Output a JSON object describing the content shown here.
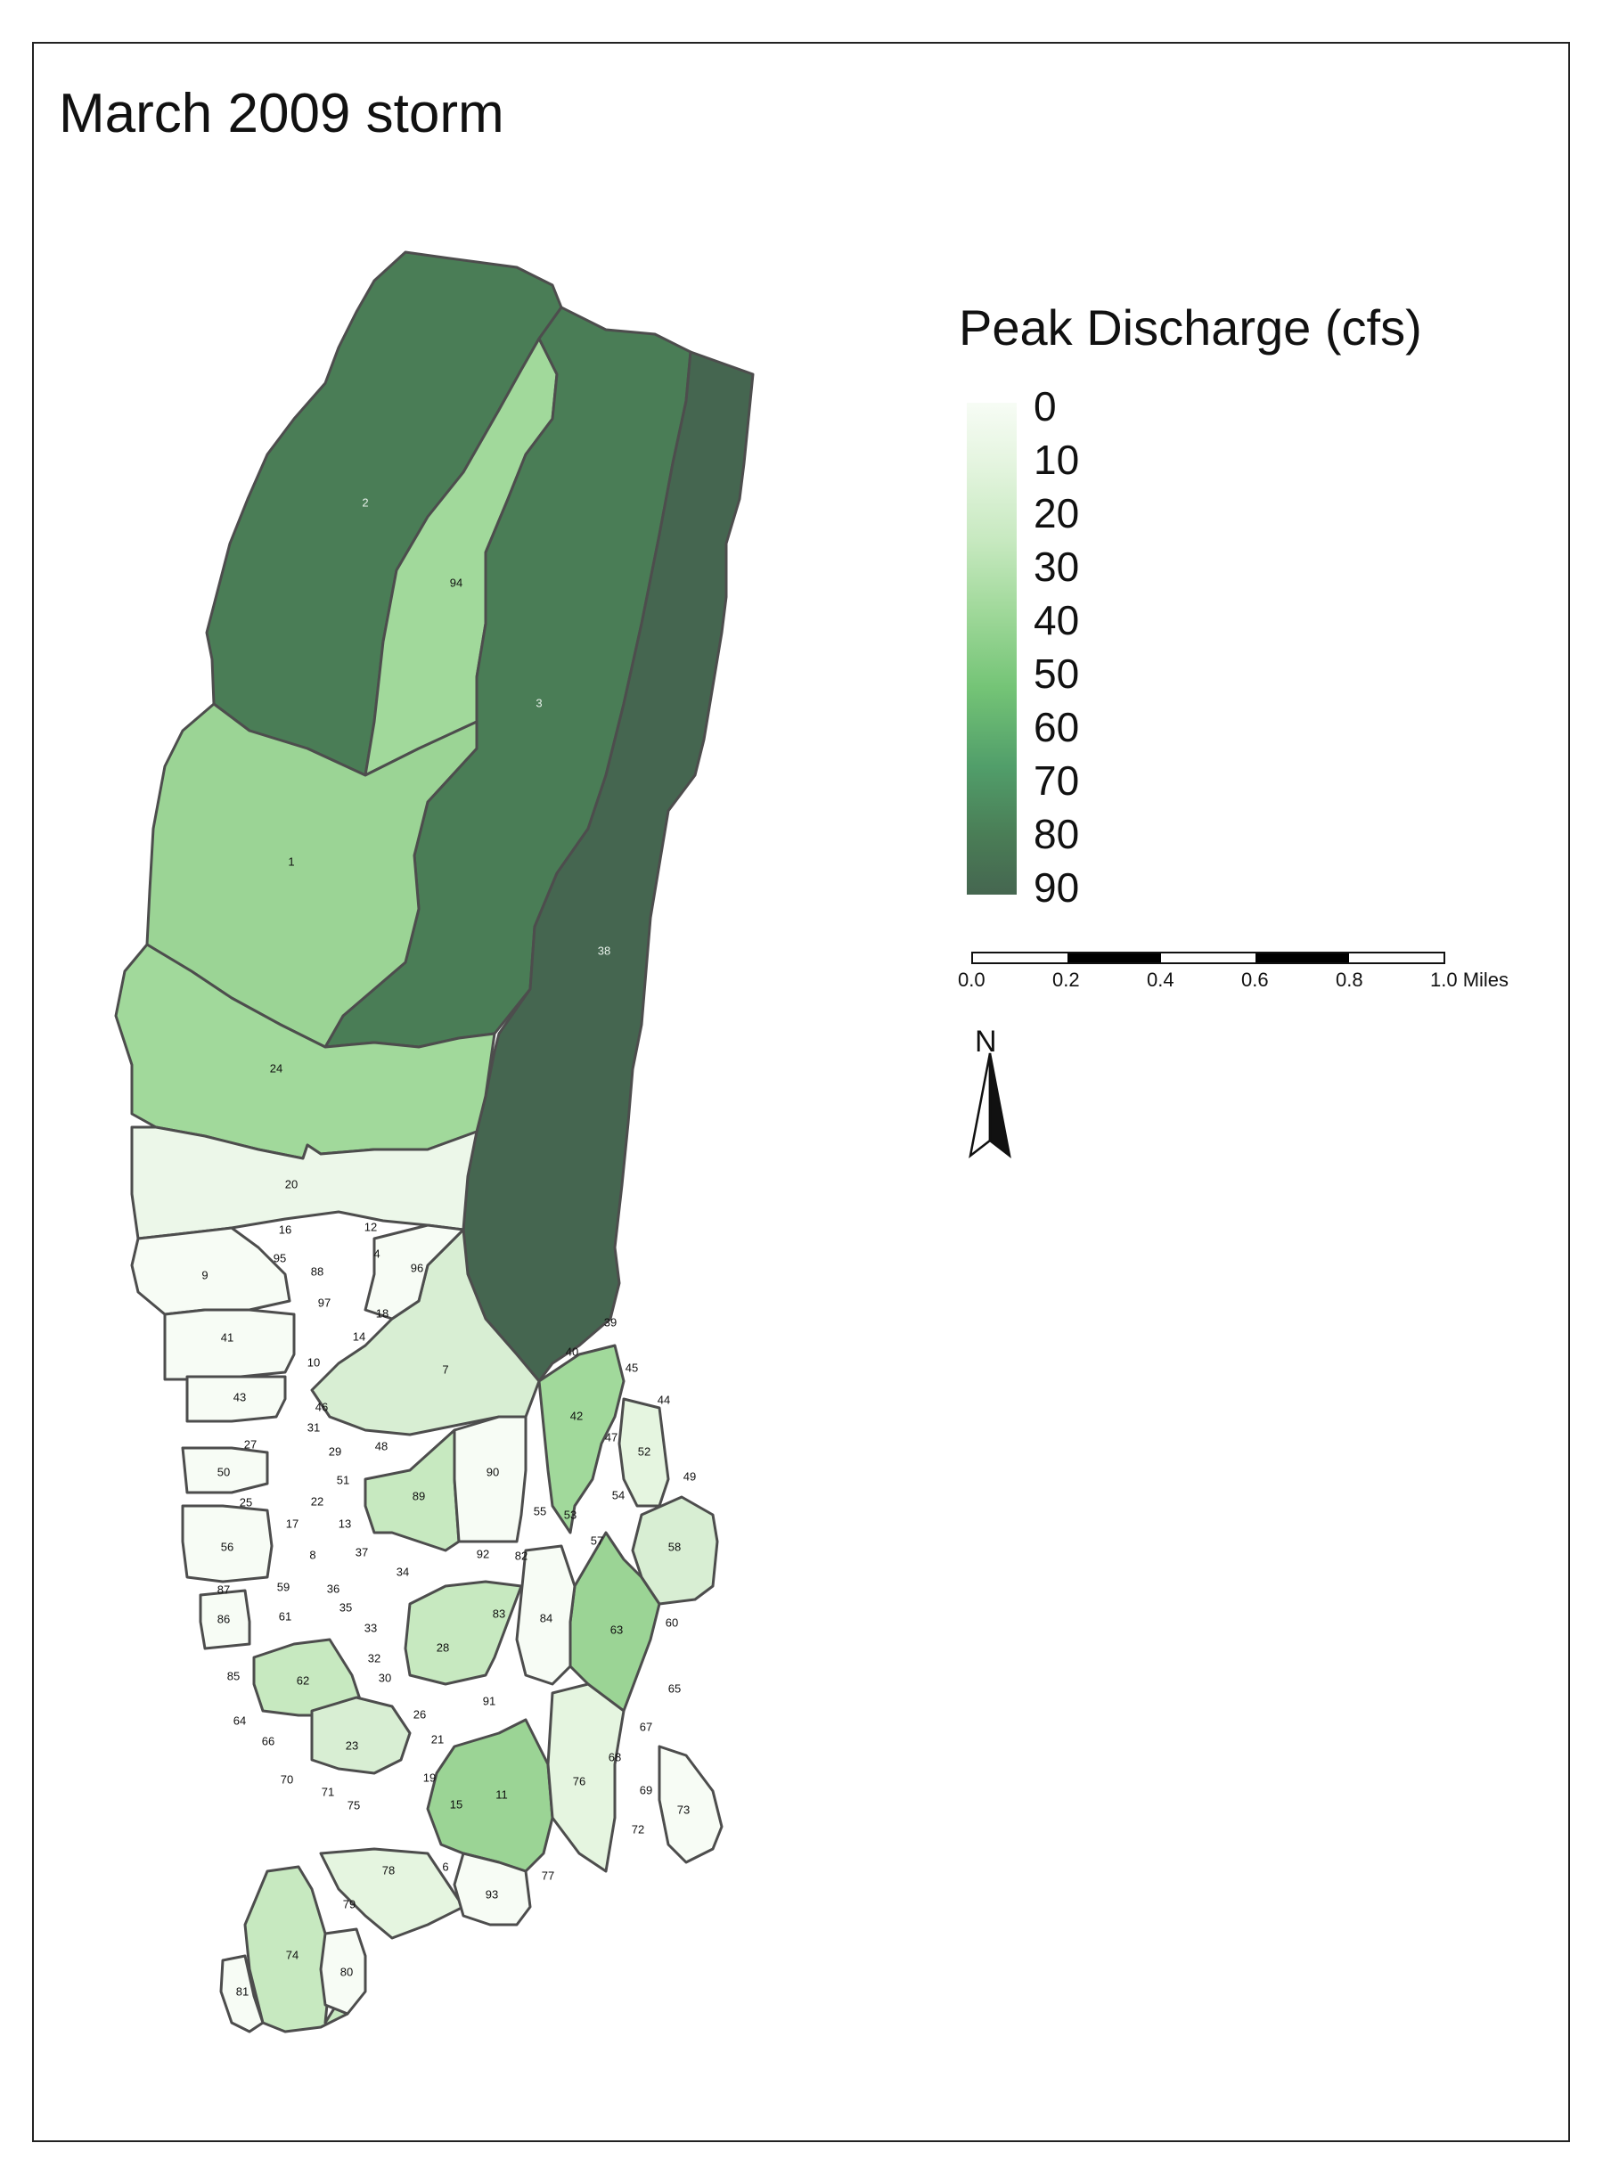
{
  "title": "March 2009 storm",
  "legend": {
    "title": "Peak Discharge (cfs)",
    "labels": [
      "0",
      "10",
      "20",
      "30",
      "40",
      "50",
      "60",
      "70",
      "80",
      "90"
    ],
    "colors": [
      "#f7fcf5",
      "#456650"
    ]
  },
  "scale_bar": {
    "labels": [
      "0.0",
      "0.2",
      "0.4",
      "0.6",
      "0.8",
      "1.0 Miles"
    ]
  },
  "north_arrow": {
    "label": "N",
    "icon": "north-arrow-icon"
  },
  "colors": {
    "dark_90": "#456650",
    "dark_80": "#4a7d56",
    "light_40": "#a1d99b",
    "mid_45": "#9bd495",
    "light_20": "#d8eed3",
    "light_10": "#ecf7e9",
    "near_0": "#f7fcf5",
    "border": "#4d4d4d"
  },
  "subbasins": [
    {
      "id": "2",
      "peak_cfs": 80
    },
    {
      "id": "94",
      "peak_cfs": 40
    },
    {
      "id": "3",
      "peak_cfs": 80
    },
    {
      "id": "38",
      "peak_cfs": 90
    },
    {
      "id": "1",
      "peak_cfs": 45
    },
    {
      "id": "24",
      "peak_cfs": 40
    },
    {
      "id": "20",
      "peak_cfs": 10
    },
    {
      "id": "7",
      "peak_cfs": 15
    },
    {
      "id": "42",
      "peak_cfs": 40
    },
    {
      "id": "89",
      "peak_cfs": 30
    },
    {
      "id": "63",
      "peak_cfs": 40
    },
    {
      "id": "11",
      "peak_cfs": 40
    },
    {
      "id": "28",
      "peak_cfs": 30
    },
    {
      "id": "62",
      "peak_cfs": 30
    },
    {
      "id": "74",
      "peak_cfs": 30
    },
    {
      "id": "58",
      "peak_cfs": 20
    },
    {
      "id": "23",
      "peak_cfs": 20
    },
    {
      "id": "76",
      "peak_cfs": 15
    },
    {
      "id": "78",
      "peak_cfs": 15
    },
    {
      "id": "52",
      "peak_cfs": 15
    }
  ],
  "small_labels": [
    "16",
    "12",
    "95",
    "4",
    "96",
    "9",
    "88",
    "97",
    "18",
    "41",
    "10",
    "14",
    "43",
    "46",
    "31",
    "27",
    "29",
    "48",
    "50",
    "51",
    "90",
    "25",
    "22",
    "17",
    "13",
    "55",
    "53",
    "54",
    "56",
    "8",
    "37",
    "92",
    "82",
    "57",
    "87",
    "59",
    "36",
    "34",
    "35",
    "86",
    "61",
    "83",
    "84",
    "60",
    "33",
    "85",
    "32",
    "30",
    "91",
    "65",
    "64",
    "66",
    "26",
    "21",
    "67",
    "68",
    "70",
    "71",
    "19",
    "69",
    "73",
    "75",
    "15",
    "72",
    "6",
    "77",
    "93",
    "79",
    "80",
    "81",
    "39",
    "40",
    "45",
    "44",
    "47",
    "49"
  ]
}
